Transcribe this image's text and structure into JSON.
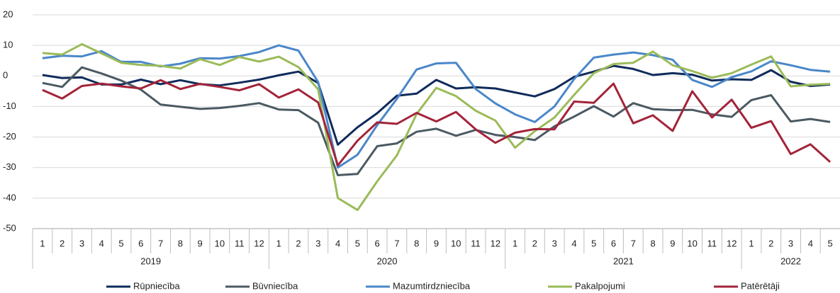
{
  "chart_data": {
    "type": "line",
    "categories": [
      "1",
      "2",
      "3",
      "4",
      "5",
      "6",
      "7",
      "8",
      "9",
      "10",
      "11",
      "12",
      "1",
      "2",
      "3",
      "4",
      "5",
      "6",
      "7",
      "8",
      "9",
      "10",
      "11",
      "12",
      "1",
      "2",
      "3",
      "4",
      "5",
      "6",
      "7",
      "8",
      "9",
      "10",
      "11",
      "12",
      "1",
      "2",
      "3",
      "4",
      "5"
    ],
    "x_groups": [
      "2019",
      "2020",
      "2021",
      "2022"
    ],
    "ylim": [
      -50,
      20
    ],
    "yticks": [
      -50,
      -40,
      -30,
      -20,
      -10,
      0,
      10,
      20
    ],
    "grid": true,
    "legend": "bottom",
    "series": [
      {
        "name": "Rūpniecība",
        "color": "#0f2b5b",
        "values": [
          0.3,
          -0.7,
          -0.5,
          -2.8,
          -2.8,
          -1.2,
          -2.7,
          -1.4,
          -2.7,
          -3.1,
          -2.2,
          -1.2,
          0.2,
          1.4,
          -2.3,
          -22.5,
          -16.8,
          -12.2,
          -6.5,
          -5.8,
          -1.3,
          -4.1,
          -3.7,
          -4.1,
          -5.4,
          -6.7,
          -4.3,
          -0.3,
          1.4,
          3.3,
          2.3,
          0.3,
          0.9,
          0.4,
          -1.5,
          -1.1,
          -1.3,
          1.9,
          -1.9,
          -3.3,
          -2.8
        ]
      },
      {
        "name": "Būvniecība",
        "color": "#4b5a62",
        "values": [
          -2.3,
          -3.6,
          2.8,
          0.8,
          -1.5,
          -4.5,
          -9.4,
          -10.1,
          -10.8,
          -10.5,
          -9.8,
          -8.9,
          -11.0,
          -11.2,
          -15.3,
          -32.5,
          -32.1,
          -23.0,
          -22.1,
          -18.3,
          -17.3,
          -19.6,
          -17.7,
          -19.3,
          -20.0,
          -21.0,
          -16.5,
          -13.3,
          -9.9,
          -13.3,
          -8.9,
          -10.9,
          -11.2,
          -11.1,
          -12.6,
          -13.4,
          -7.9,
          -6.3,
          -14.9,
          -14.1,
          -15.1
        ]
      },
      {
        "name": "Mazumtirdzniecība",
        "color": "#4a87c9",
        "values": [
          5.8,
          6.6,
          6.4,
          8.1,
          4.6,
          4.6,
          3.1,
          4.0,
          5.8,
          5.7,
          6.5,
          7.8,
          10.0,
          8.3,
          -2.0,
          -30.0,
          -25.8,
          -16.1,
          -7.5,
          2.1,
          4.1,
          4.3,
          -4.3,
          -9.0,
          -12.6,
          -15.1,
          -10.0,
          -1.0,
          6.0,
          7.0,
          7.7,
          6.8,
          5.3,
          -1.3,
          -3.6,
          -0.4,
          1.5,
          4.8,
          3.5,
          2.0,
          1.4
        ]
      },
      {
        "name": "Pakalpojumi",
        "color": "#9bbb59",
        "values": [
          7.5,
          7.0,
          10.4,
          7.4,
          4.3,
          3.6,
          3.3,
          2.4,
          5.5,
          3.6,
          6.2,
          4.7,
          6.3,
          2.9,
          -4.4,
          -40.0,
          -43.9,
          -34.5,
          -26.0,
          -12.5,
          -3.9,
          -6.6,
          -11.4,
          -14.6,
          -23.5,
          -18.1,
          -13.6,
          -6.2,
          0.9,
          3.9,
          4.3,
          8.0,
          3.5,
          1.6,
          -0.6,
          0.9,
          3.7,
          6.4,
          -3.4,
          -2.9,
          -2.6
        ]
      },
      {
        "name": "Patērētāji",
        "color": "#a3243a",
        "values": [
          -4.6,
          -7.4,
          -3.3,
          -2.5,
          -3.4,
          -4.1,
          -1.4,
          -4.3,
          -2.6,
          -3.6,
          -4.7,
          -2.7,
          -7.1,
          -4.4,
          -8.7,
          -29.3,
          -21.2,
          -15.2,
          -15.7,
          -12.1,
          -14.9,
          -11.8,
          -17.5,
          -21.9,
          -18.6,
          -17.4,
          -17.5,
          -8.4,
          -8.8,
          -2.5,
          -15.5,
          -12.9,
          -18.0,
          -5.0,
          -13.6,
          -7.8,
          -17.0,
          -14.8,
          -25.6,
          -22.4,
          -28.2
        ]
      }
    ]
  }
}
